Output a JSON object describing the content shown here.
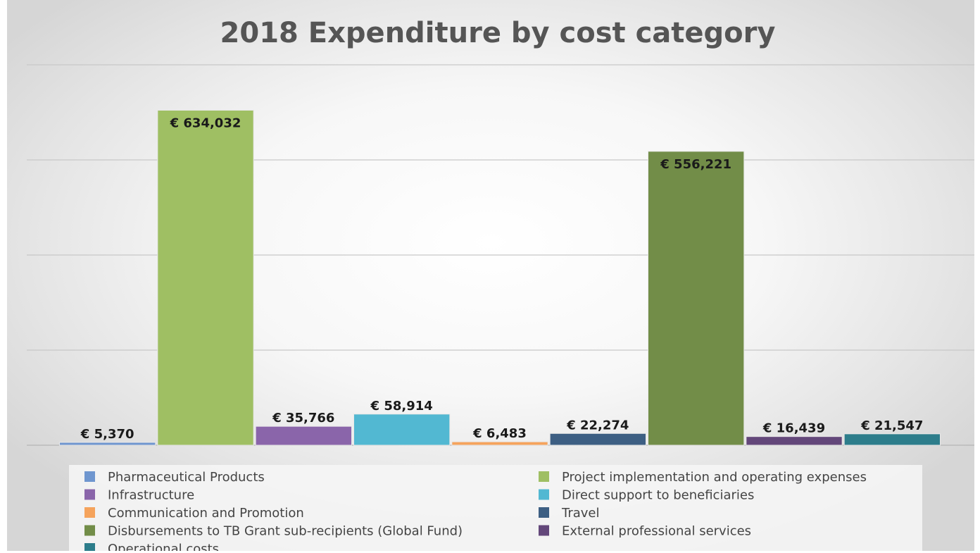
{
  "chart_data": {
    "type": "bar",
    "title": "2018 Expenditure by cost category",
    "xlabel": "",
    "ylabel": "",
    "ylim": [
      0,
      720000
    ],
    "grid": true,
    "legend_position": "bottom",
    "series": [
      {
        "name": "Pharmaceutical Products",
        "value": 5370,
        "label": "€ 5,370",
        "color": "#6f96cf"
      },
      {
        "name": "Project implementation and operating expenses",
        "value": 634032,
        "label": "€ 634,032",
        "color": "#9fbf63"
      },
      {
        "name": "Infrastructure",
        "value": 35766,
        "label": "€ 35,766",
        "color": "#8a65aa"
      },
      {
        "name": "Direct support to beneficiaries",
        "value": 58914,
        "label": "€ 58,914",
        "color": "#52b8d2"
      },
      {
        "name": "Communication and Promotion",
        "value": 6483,
        "label": "€ 6,483",
        "color": "#f5a35c"
      },
      {
        "name": "Travel",
        "value": 22274,
        "label": "€ 22,274",
        "color": "#3d5f83"
      },
      {
        "name": "Disbursements to TB Grant sub-recipients (Global Fund)",
        "value": 556221,
        "label": "€ 556,221",
        "color": "#728d48"
      },
      {
        "name": "External professional services",
        "value": 16439,
        "label": "€ 16,439",
        "color": "#63477a"
      },
      {
        "name": "Operational costs",
        "value": 21547,
        "label": "€ 21,547",
        "color": "#2d7d8b"
      }
    ]
  }
}
